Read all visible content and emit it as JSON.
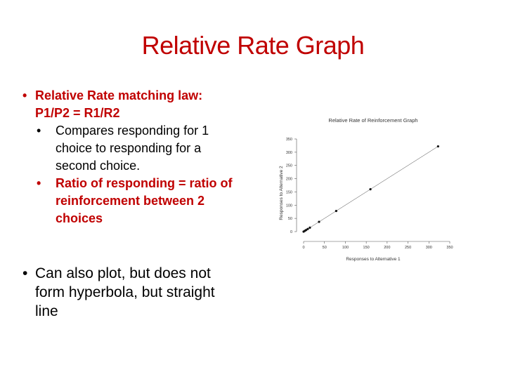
{
  "title": "Relative Rate Graph",
  "bullet1": {
    "line1": "Relative Rate matching law:",
    "line2": "P1/P2 = R1/R2"
  },
  "sub1": {
    "line1": "Compares responding for 1",
    "line2": "choice to responding for a",
    "line3": "second choice."
  },
  "sub2": {
    "line1": "Ratio of responding = ratio of",
    "line2": "reinforcement between 2",
    "line3": "choices"
  },
  "bullet2": {
    "line1": "Can also plot, but does not",
    "line2": "form hyperbola, but straight",
    "line3": "line"
  },
  "bullet_char": "•",
  "colors": {
    "accent": "#c00000",
    "text": "#000000"
  },
  "chart_data": {
    "type": "scatter",
    "title": "Relative Rate of Reinforcement Graph",
    "xlabel": "Responses to Alternative 1",
    "ylabel": "Responses to Alternative 2",
    "xlim": [
      0,
      350
    ],
    "ylim": [
      0,
      350
    ],
    "x_ticks": [
      0,
      50,
      100,
      150,
      200,
      250,
      300,
      350
    ],
    "y_ticks": [
      0,
      50,
      100,
      150,
      200,
      250,
      300,
      350
    ],
    "x": [
      0,
      3,
      6,
      10,
      15,
      37,
      78,
      160,
      322
    ],
    "y": [
      0,
      3,
      6,
      10,
      15,
      37,
      78,
      160,
      322
    ],
    "trend_line": true,
    "grid": false
  }
}
